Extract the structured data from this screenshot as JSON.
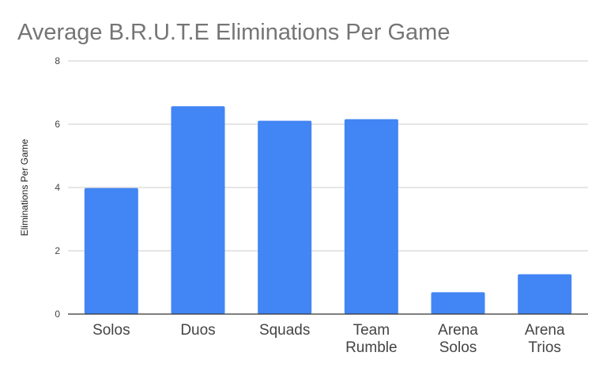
{
  "chart_data": {
    "type": "bar",
    "title": "Average B.R.U.T.E Eliminations Per Game",
    "xlabel": "",
    "ylabel": "Eliminations Per Game",
    "categories": [
      [
        "Solos"
      ],
      [
        "Duos"
      ],
      [
        "Squads"
      ],
      [
        "Team",
        "Rumble"
      ],
      [
        "Arena",
        "Solos"
      ],
      [
        "Arena",
        "Trios"
      ]
    ],
    "values": [
      3.98,
      6.57,
      6.11,
      6.16,
      0.69,
      1.26
    ],
    "ylim": [
      0,
      8
    ],
    "yticks": [
      "0",
      "2",
      "4",
      "6",
      "8"
    ],
    "grid": true,
    "bar_color": "#4285f4",
    "grid_color": "#cccccc",
    "axis_color": "#333333"
  }
}
